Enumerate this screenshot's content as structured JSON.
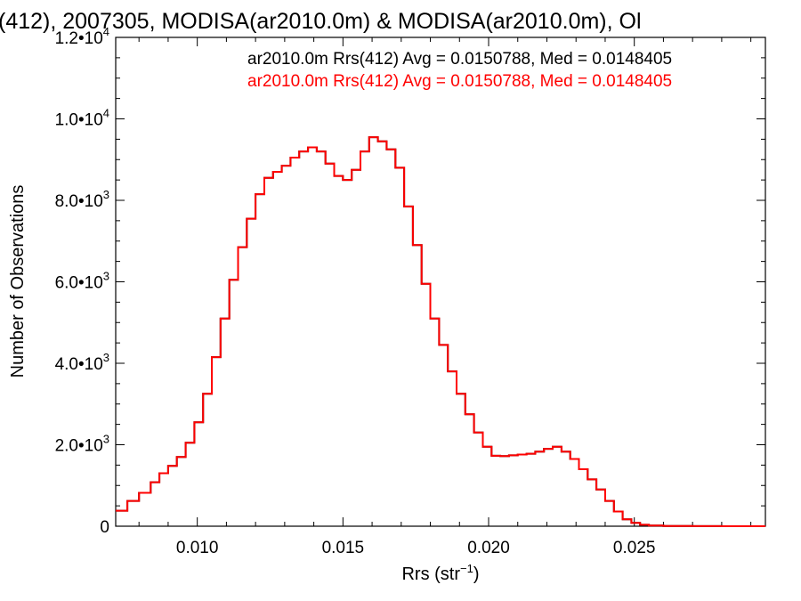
{
  "chart_data": {
    "type": "line",
    "title": "(412), 2007305, MODISA(ar2010.0m) & MODISA(ar2010.0m), Ol",
    "xlabel": "Rrs (str",
    "xlabel_sup": "−1",
    "xlabel_suffix": ")",
    "ylabel": "Number of Observations",
    "xlim": [
      0.0072,
      0.0295
    ],
    "ylim": [
      0,
      12000
    ],
    "grid": false,
    "legend_position": "top-right",
    "x_ticks": [
      {
        "value": 0.01,
        "label": "0.010"
      },
      {
        "value": 0.015,
        "label": "0.015"
      },
      {
        "value": 0.02,
        "label": "0.020"
      },
      {
        "value": 0.025,
        "label": "0.025"
      }
    ],
    "y_ticks": [
      {
        "value": 0,
        "mant": "0",
        "exp": ""
      },
      {
        "value": 2000,
        "mant": "2.0•10",
        "exp": "3"
      },
      {
        "value": 4000,
        "mant": "4.0•10",
        "exp": "3"
      },
      {
        "value": 6000,
        "mant": "6.0•10",
        "exp": "3"
      },
      {
        "value": 8000,
        "mant": "8.0•10",
        "exp": "3"
      },
      {
        "value": 10000,
        "mant": "1.0•10",
        "exp": "4"
      },
      {
        "value": 12000,
        "mant": "1.2•10",
        "exp": "4"
      }
    ],
    "series": [
      {
        "legend": "ar2010.0m Rrs(412) Avg = 0.0150788, Med = 0.0148405",
        "color": "#000000",
        "points": [
          [
            0.0072,
            380
          ],
          [
            0.0076,
            620
          ],
          [
            0.008,
            820
          ],
          [
            0.0084,
            1080
          ],
          [
            0.0087,
            1300
          ],
          [
            0.009,
            1480
          ],
          [
            0.0093,
            1700
          ],
          [
            0.0096,
            2050
          ],
          [
            0.0099,
            2550
          ],
          [
            0.0102,
            3250
          ],
          [
            0.0105,
            4150
          ],
          [
            0.0108,
            5100
          ],
          [
            0.0111,
            6050
          ],
          [
            0.0114,
            6850
          ],
          [
            0.0117,
            7550
          ],
          [
            0.012,
            8150
          ],
          [
            0.0123,
            8550
          ],
          [
            0.0126,
            8700
          ],
          [
            0.0129,
            8850
          ],
          [
            0.0132,
            9050
          ],
          [
            0.0135,
            9200
          ],
          [
            0.0138,
            9300
          ],
          [
            0.0141,
            9200
          ],
          [
            0.0144,
            8900
          ],
          [
            0.0147,
            8600
          ],
          [
            0.015,
            8500
          ],
          [
            0.0153,
            8750
          ],
          [
            0.0156,
            9200
          ],
          [
            0.0159,
            9550
          ],
          [
            0.0162,
            9450
          ],
          [
            0.0165,
            9250
          ],
          [
            0.0168,
            8800
          ],
          [
            0.0171,
            7850
          ],
          [
            0.0174,
            6900
          ],
          [
            0.0177,
            5950
          ],
          [
            0.018,
            5100
          ],
          [
            0.0183,
            4450
          ],
          [
            0.0186,
            3800
          ],
          [
            0.0189,
            3250
          ],
          [
            0.0192,
            2750
          ],
          [
            0.0195,
            2300
          ],
          [
            0.0198,
            1950
          ],
          [
            0.0201,
            1730
          ],
          [
            0.0204,
            1720
          ],
          [
            0.0207,
            1740
          ],
          [
            0.021,
            1760
          ],
          [
            0.0213,
            1780
          ],
          [
            0.0216,
            1830
          ],
          [
            0.0219,
            1900
          ],
          [
            0.0222,
            1950
          ],
          [
            0.0225,
            1830
          ],
          [
            0.0228,
            1650
          ],
          [
            0.0231,
            1400
          ],
          [
            0.0234,
            1150
          ],
          [
            0.0237,
            900
          ],
          [
            0.024,
            620
          ],
          [
            0.0243,
            360
          ],
          [
            0.0246,
            170
          ],
          [
            0.0249,
            80
          ],
          [
            0.0252,
            35
          ],
          [
            0.0255,
            15
          ],
          [
            0.026,
            5
          ],
          [
            0.027,
            2
          ],
          [
            0.028,
            0
          ],
          [
            0.0295,
            0
          ]
        ]
      },
      {
        "legend": "ar2010.0m Rrs(412) Avg = 0.0150788, Med = 0.0148405",
        "color": "#ff0000",
        "points": [
          [
            0.0072,
            380
          ],
          [
            0.0076,
            620
          ],
          [
            0.008,
            820
          ],
          [
            0.0084,
            1080
          ],
          [
            0.0087,
            1300
          ],
          [
            0.009,
            1480
          ],
          [
            0.0093,
            1700
          ],
          [
            0.0096,
            2050
          ],
          [
            0.0099,
            2550
          ],
          [
            0.0102,
            3250
          ],
          [
            0.0105,
            4150
          ],
          [
            0.0108,
            5100
          ],
          [
            0.0111,
            6050
          ],
          [
            0.0114,
            6850
          ],
          [
            0.0117,
            7550
          ],
          [
            0.012,
            8150
          ],
          [
            0.0123,
            8550
          ],
          [
            0.0126,
            8700
          ],
          [
            0.0129,
            8850
          ],
          [
            0.0132,
            9050
          ],
          [
            0.0135,
            9200
          ],
          [
            0.0138,
            9300
          ],
          [
            0.0141,
            9200
          ],
          [
            0.0144,
            8900
          ],
          [
            0.0147,
            8600
          ],
          [
            0.015,
            8500
          ],
          [
            0.0153,
            8750
          ],
          [
            0.0156,
            9200
          ],
          [
            0.0159,
            9550
          ],
          [
            0.0162,
            9450
          ],
          [
            0.0165,
            9250
          ],
          [
            0.0168,
            8800
          ],
          [
            0.0171,
            7850
          ],
          [
            0.0174,
            6900
          ],
          [
            0.0177,
            5950
          ],
          [
            0.018,
            5100
          ],
          [
            0.0183,
            4450
          ],
          [
            0.0186,
            3800
          ],
          [
            0.0189,
            3250
          ],
          [
            0.0192,
            2750
          ],
          [
            0.0195,
            2300
          ],
          [
            0.0198,
            1950
          ],
          [
            0.0201,
            1730
          ],
          [
            0.0204,
            1720
          ],
          [
            0.0207,
            1740
          ],
          [
            0.021,
            1760
          ],
          [
            0.0213,
            1780
          ],
          [
            0.0216,
            1830
          ],
          [
            0.0219,
            1900
          ],
          [
            0.0222,
            1950
          ],
          [
            0.0225,
            1830
          ],
          [
            0.0228,
            1650
          ],
          [
            0.0231,
            1400
          ],
          [
            0.0234,
            1150
          ],
          [
            0.0237,
            900
          ],
          [
            0.024,
            620
          ],
          [
            0.0243,
            360
          ],
          [
            0.0246,
            170
          ],
          [
            0.0249,
            80
          ],
          [
            0.0252,
            35
          ],
          [
            0.0255,
            15
          ],
          [
            0.026,
            5
          ],
          [
            0.027,
            2
          ],
          [
            0.028,
            0
          ],
          [
            0.0295,
            0
          ]
        ]
      }
    ]
  }
}
